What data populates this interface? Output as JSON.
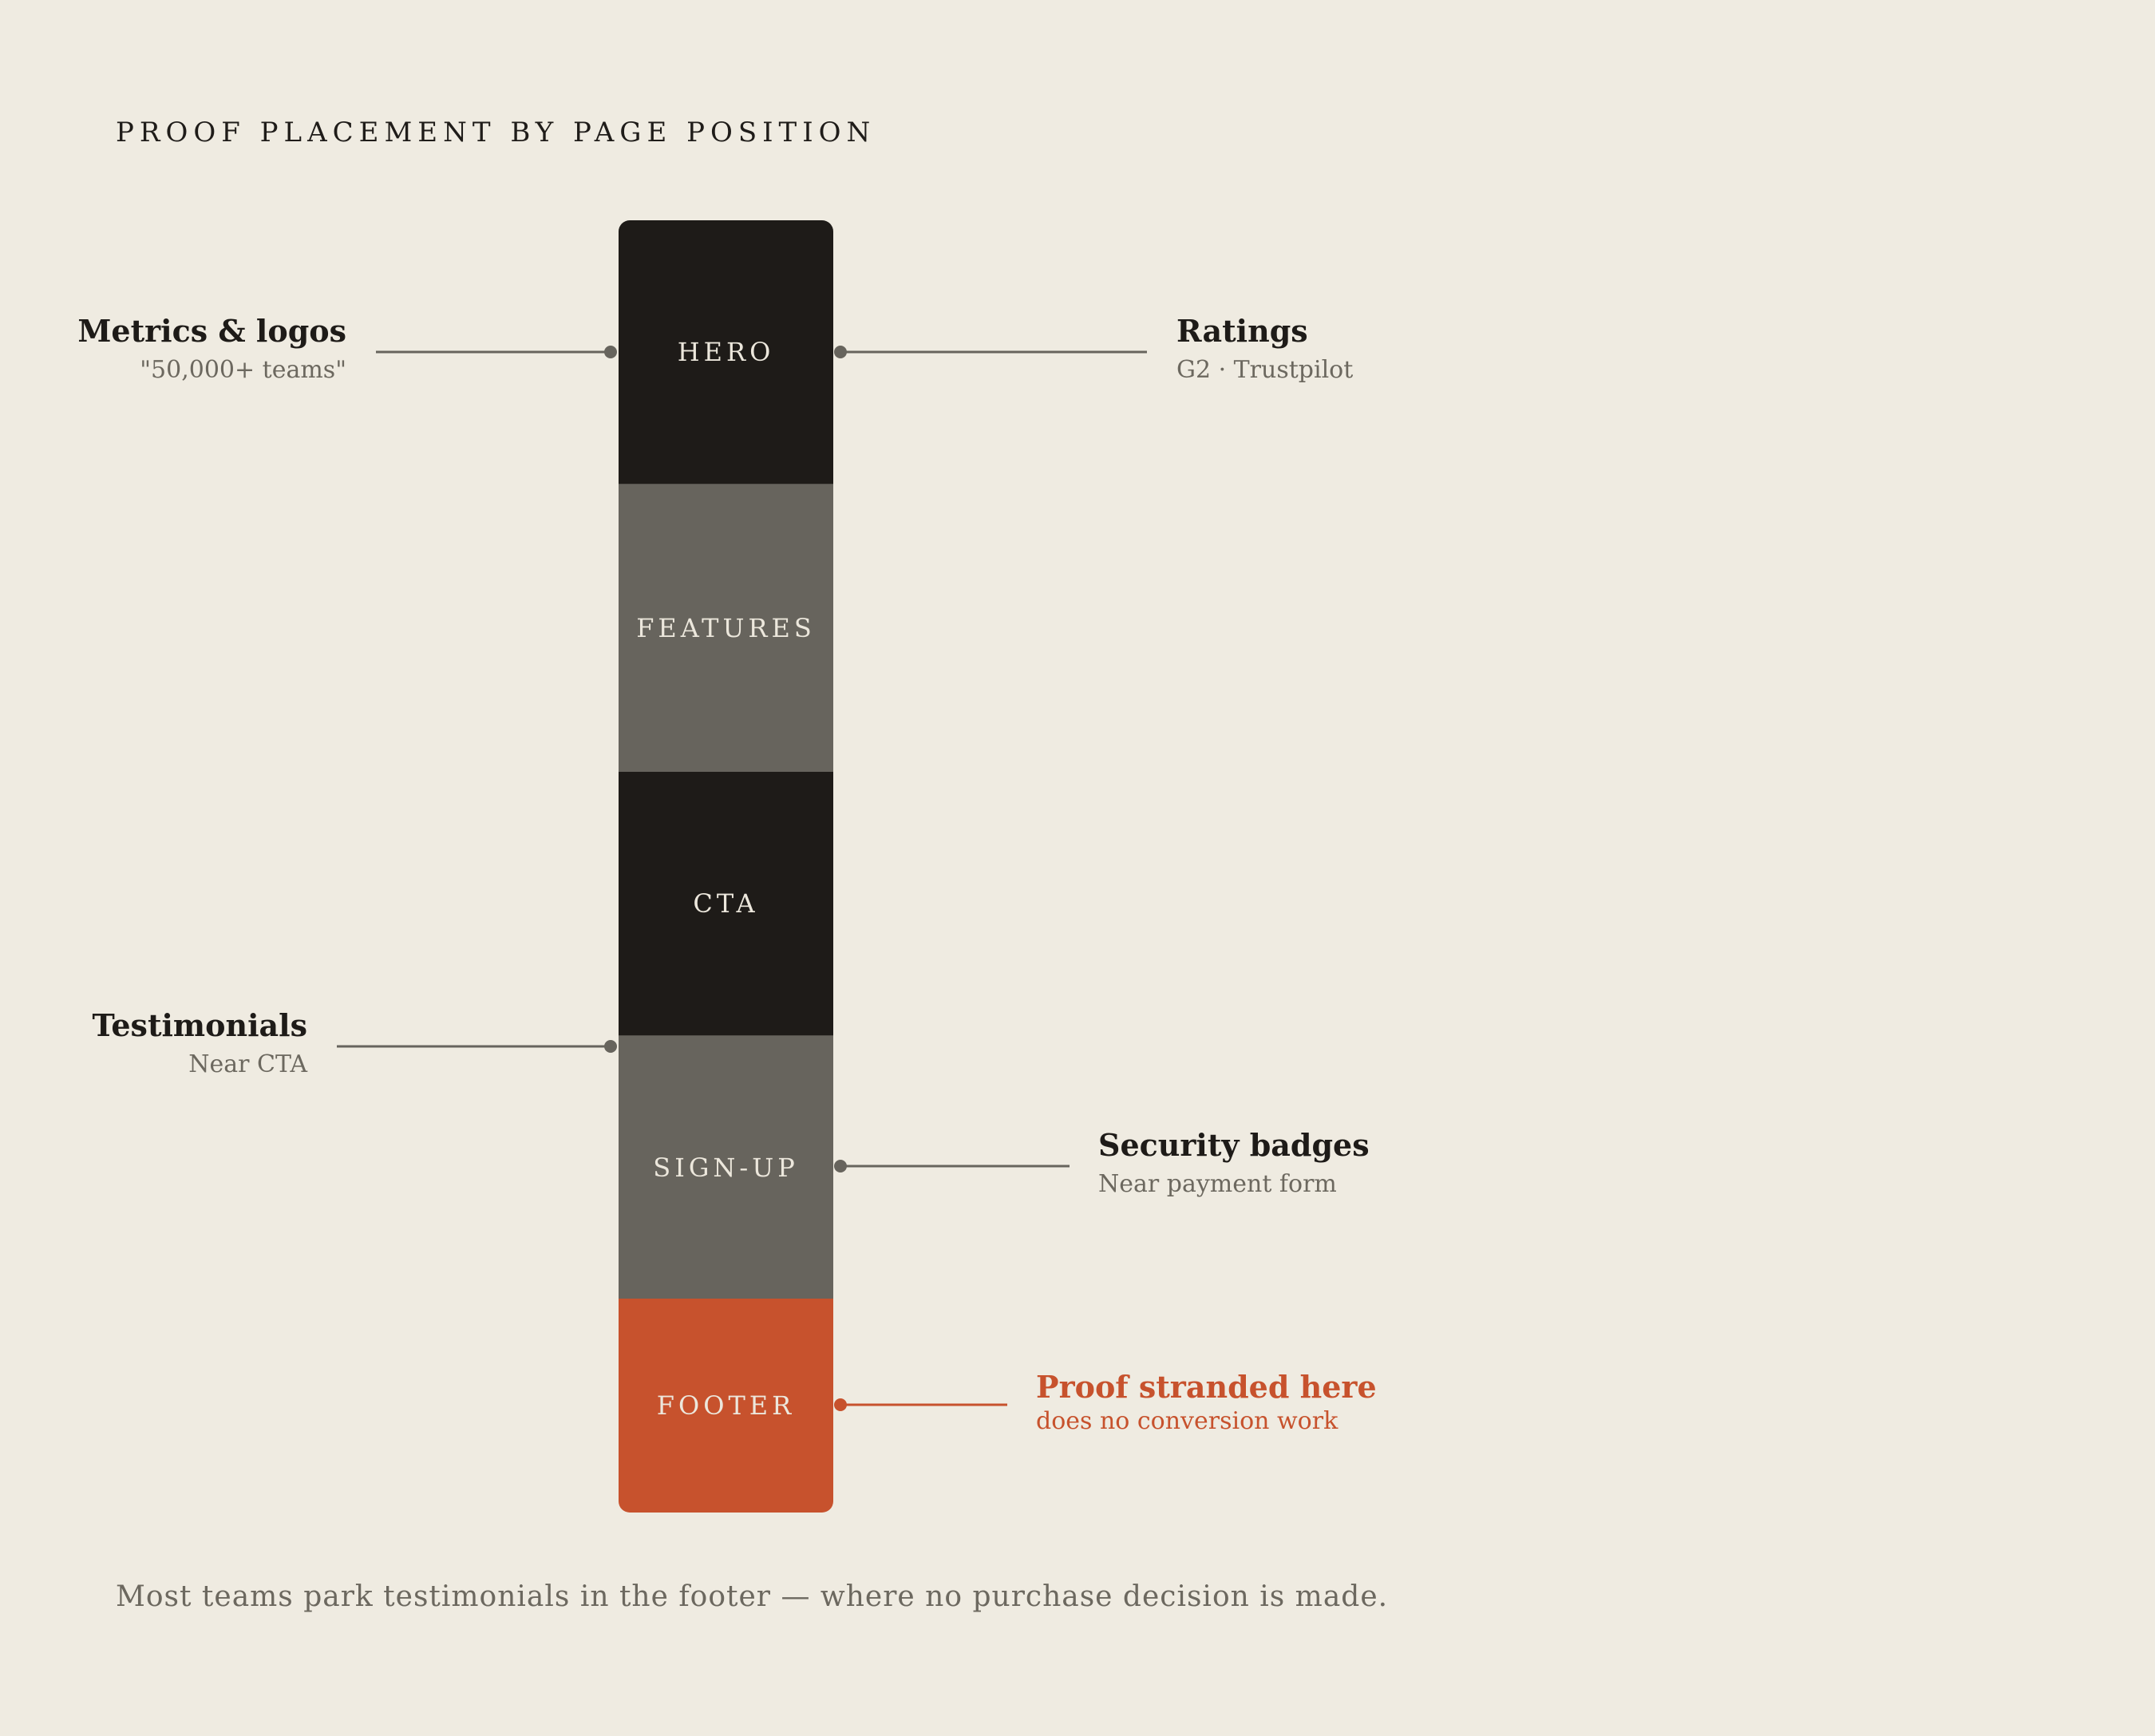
{
  "title": "PROOF PLACEMENT BY PAGE POSITION",
  "sections": {
    "hero": "HERO",
    "features": "FEATURES",
    "cta": "CTA",
    "signup": "SIGN-UP",
    "footer": "FOOTER"
  },
  "callouts": {
    "metrics": {
      "heading": "Metrics & logos",
      "sub": "\"50,000+ teams\""
    },
    "ratings": {
      "heading": "Ratings",
      "sub": "G2 · Trustpilot"
    },
    "testimonials": {
      "heading": "Testimonials",
      "sub": "Near CTA"
    },
    "security": {
      "heading": "Security badges",
      "sub": "Near payment form"
    },
    "stranded": {
      "heading": "Proof stranded here",
      "sub": "does no conversion work"
    }
  },
  "caption": "Most teams park testimonials in the footer — where no purchase decision is made.",
  "colors": {
    "background": "#efebe1",
    "dark_segment": "#1e1b18",
    "gray_segment": "#67645d",
    "accent": "#c7522d",
    "connector": "#67645d"
  }
}
